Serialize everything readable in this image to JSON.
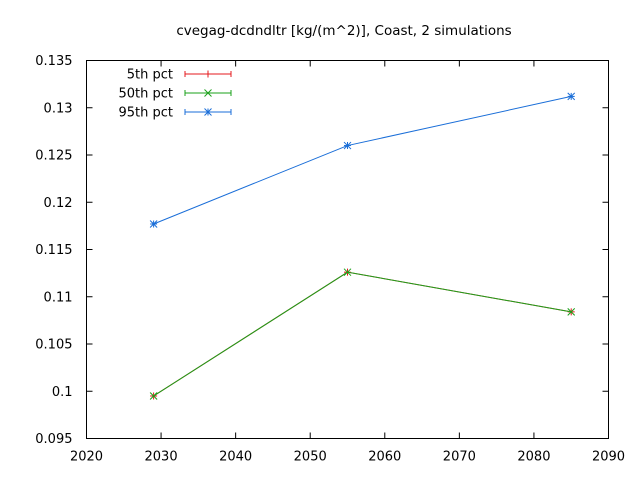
{
  "chart_data": {
    "type": "line",
    "title": "cvegag-dcdndltr [kg/(m^2)], Coast, 2 simulations",
    "xlabel": "",
    "ylabel": "",
    "xlim": [
      2020,
      2090
    ],
    "ylim": [
      0.095,
      0.135
    ],
    "x_ticks": [
      2020,
      2030,
      2040,
      2050,
      2060,
      2070,
      2080,
      2090
    ],
    "y_ticks": [
      0.095,
      0.1,
      0.105,
      0.11,
      0.115,
      0.12,
      0.125,
      0.13,
      0.135
    ],
    "x_tick_labels": [
      "2020",
      "2030",
      "2040",
      "2050",
      "2060",
      "2070",
      "2080",
      "2090"
    ],
    "y_tick_labels": [
      "0.095",
      "0.1",
      "0.105",
      "0.11",
      "0.115",
      "0.12",
      "0.125",
      "0.13",
      "0.135"
    ],
    "grid": false,
    "legend_position": "top-left",
    "x": [
      2029,
      2055,
      2085
    ],
    "series": [
      {
        "name": "5th pct",
        "color": "#e41a1c",
        "marker": "plus",
        "values": [
          0.0995,
          0.1126,
          0.1084
        ]
      },
      {
        "name": "50th pct",
        "color": "#1aa01a",
        "marker": "cross",
        "values": [
          0.0995,
          0.1126,
          0.1084
        ]
      },
      {
        "name": "95th pct",
        "color": "#1a6ed8",
        "marker": "star",
        "values": [
          0.1177,
          0.126,
          0.1312
        ]
      }
    ]
  }
}
